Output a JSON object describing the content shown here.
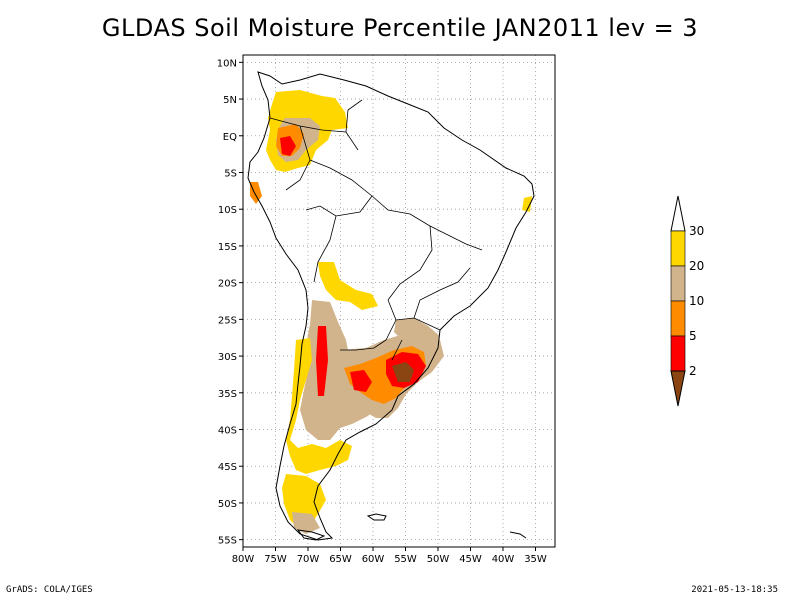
{
  "title": "GLDAS Soil Moisture Percentile JAN2011 lev = 3",
  "footer": {
    "left": "GrADS: COLA/IGES",
    "right": "2021-05-13-18:35"
  },
  "map": {
    "lon_range": [
      -80,
      -32
    ],
    "lat_range": [
      -56,
      11
    ],
    "lon_ticks": [
      {
        "value": -80,
        "label": "80W"
      },
      {
        "value": -75,
        "label": "75W"
      },
      {
        "value": -70,
        "label": "70W"
      },
      {
        "value": -65,
        "label": "65W"
      },
      {
        "value": -60,
        "label": "60W"
      },
      {
        "value": -55,
        "label": "55W"
      },
      {
        "value": -50,
        "label": "50W"
      },
      {
        "value": -45,
        "label": "45W"
      },
      {
        "value": -40,
        "label": "40W"
      },
      {
        "value": -35,
        "label": "35W"
      }
    ],
    "lat_ticks": [
      {
        "value": 10,
        "label": "10N"
      },
      {
        "value": 5,
        "label": "5N"
      },
      {
        "value": 0,
        "label": "EQ"
      },
      {
        "value": -5,
        "label": "5S"
      },
      {
        "value": -10,
        "label": "10S"
      },
      {
        "value": -15,
        "label": "15S"
      },
      {
        "value": -20,
        "label": "20S"
      },
      {
        "value": -25,
        "label": "25S"
      },
      {
        "value": -30,
        "label": "30S"
      },
      {
        "value": -35,
        "label": "35S"
      },
      {
        "value": -40,
        "label": "40S"
      },
      {
        "value": -45,
        "label": "45S"
      },
      {
        "value": -50,
        "label": "50S"
      },
      {
        "value": -55,
        "label": "55S"
      }
    ],
    "grid": true,
    "grid_style": "dotted"
  },
  "colorbar": {
    "levels": [
      {
        "label": "2",
        "color": "#8b4513"
      },
      {
        "label": "5",
        "color": "#ff0000"
      },
      {
        "label": "10",
        "color": "#ff8c00"
      },
      {
        "label": "20",
        "color": "#d2b48c"
      },
      {
        "label": "30",
        "color": "#ffd700"
      }
    ],
    "top_color": "#ffffff",
    "bottom_color": "#8b4513",
    "bands": [
      {
        "name": "below-2",
        "color": "#8b4513"
      },
      {
        "name": "2-5",
        "color": "#ff0000"
      },
      {
        "name": "5-10",
        "color": "#ff8c00"
      },
      {
        "name": "10-20",
        "color": "#d2b48c"
      },
      {
        "name": "20-30",
        "color": "#ffd700"
      },
      {
        "name": "above-30",
        "color": "#ffffff"
      }
    ]
  },
  "shaded_regions": [
    {
      "name": "ecuador-colombia",
      "category": "20-30",
      "color": "#ffd700"
    },
    {
      "name": "ecuador-core",
      "category": "5-10",
      "color": "#ff8c00"
    },
    {
      "name": "ecuador-red",
      "category": "2-5",
      "color": "#ff0000"
    },
    {
      "name": "central-andes",
      "category": "20-30",
      "color": "#ffd700"
    },
    {
      "name": "chile-central",
      "category": "10-20",
      "color": "#d2b48c"
    },
    {
      "name": "argentina-pampas",
      "category": "10-20",
      "color": "#d2b48c"
    },
    {
      "name": "argentina-orange",
      "category": "5-10",
      "color": "#ff8c00"
    },
    {
      "name": "uruguay-red",
      "category": "2-5",
      "color": "#ff0000"
    },
    {
      "name": "uruguay-brown",
      "category": "below-2",
      "color": "#8b4513"
    },
    {
      "name": "patagonia",
      "category": "20-30",
      "color": "#ffd700"
    },
    {
      "name": "ne-brazil-tip",
      "category": "20-30",
      "color": "#ffd700"
    }
  ]
}
